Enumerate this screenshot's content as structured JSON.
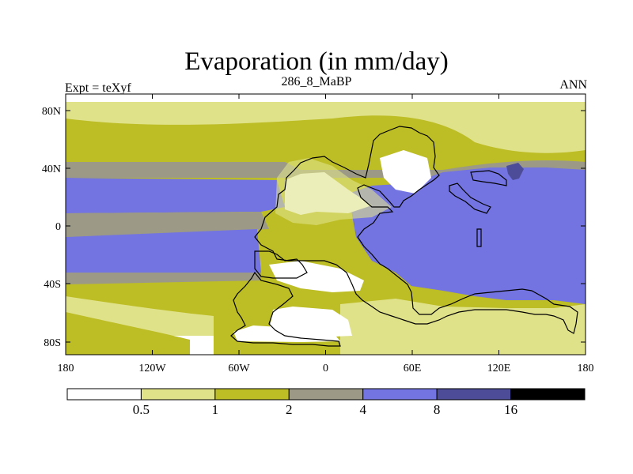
{
  "title": "Evaporation (in mm/day)",
  "left_label": "Expt = teXyf",
  "center_label": "286_8_MaBP",
  "right_label": "ANN",
  "lat_ticks": [
    "80N",
    "40N",
    "0",
    "40S",
    "80S"
  ],
  "lon_ticks": [
    "180",
    "120W",
    "60W",
    "0",
    "60E",
    "120E",
    "180"
  ],
  "colorbar": {
    "labels": [
      "0.5",
      "1",
      "2",
      "4",
      "8",
      "16"
    ],
    "colors": [
      "#ffffff",
      "#e0e28a",
      "#bdbd26",
      "#9c9a87",
      "#7373e2",
      "#4c4c99",
      "#000000"
    ]
  },
  "colors": {
    "white": "#ffffff",
    "light_yellow": "#e0e28a",
    "olive": "#bdbd26",
    "gray": "#9c9a87",
    "blue": "#7373e2",
    "dark_blue": "#4c4c99"
  }
}
